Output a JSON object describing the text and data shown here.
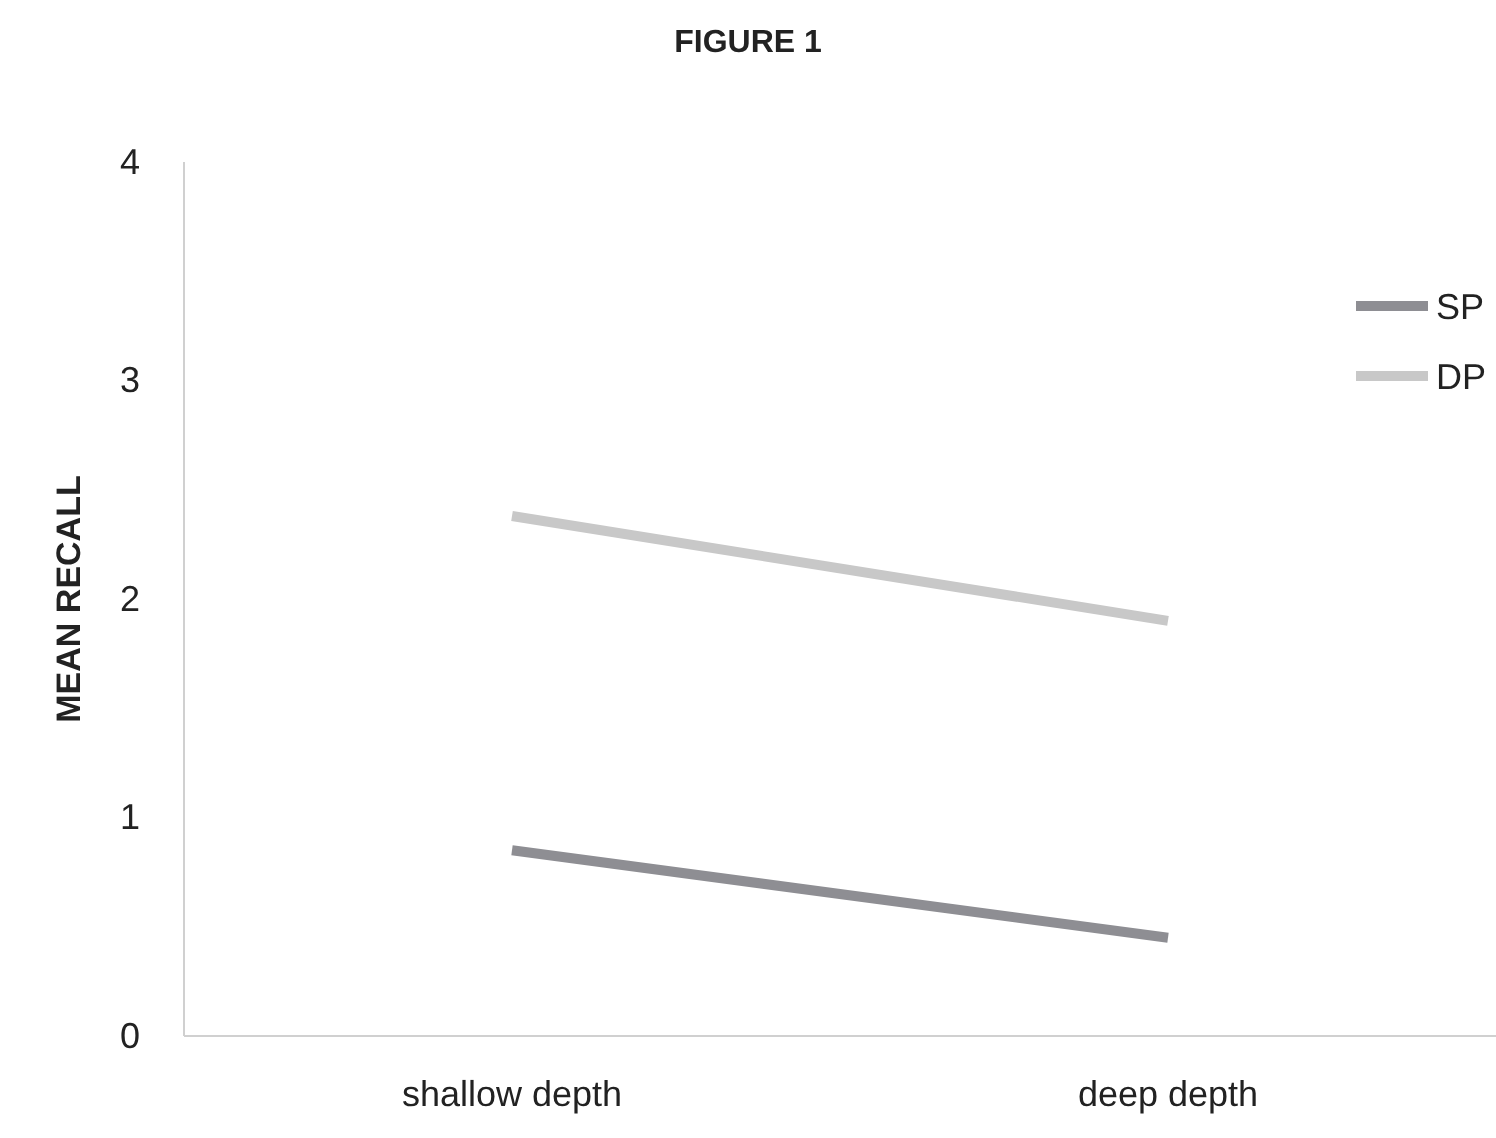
{
  "chart_data": {
    "type": "line",
    "title": "FIGURE 1",
    "ylabel": "MEAN RECALL",
    "categories": [
      "shallow depth",
      "deep depth"
    ],
    "series": [
      {
        "name": "SP",
        "color": "#8e8e93",
        "values": [
          0.85,
          0.45
        ]
      },
      {
        "name": "DP",
        "color": "#c8c8c8",
        "values": [
          2.38,
          1.9
        ]
      }
    ],
    "ylim": [
      0,
      4
    ],
    "yticks": [
      0,
      1,
      2,
      3,
      4
    ],
    "grid": false,
    "legend": "top right",
    "marker": "none",
    "line_style": "solid"
  }
}
